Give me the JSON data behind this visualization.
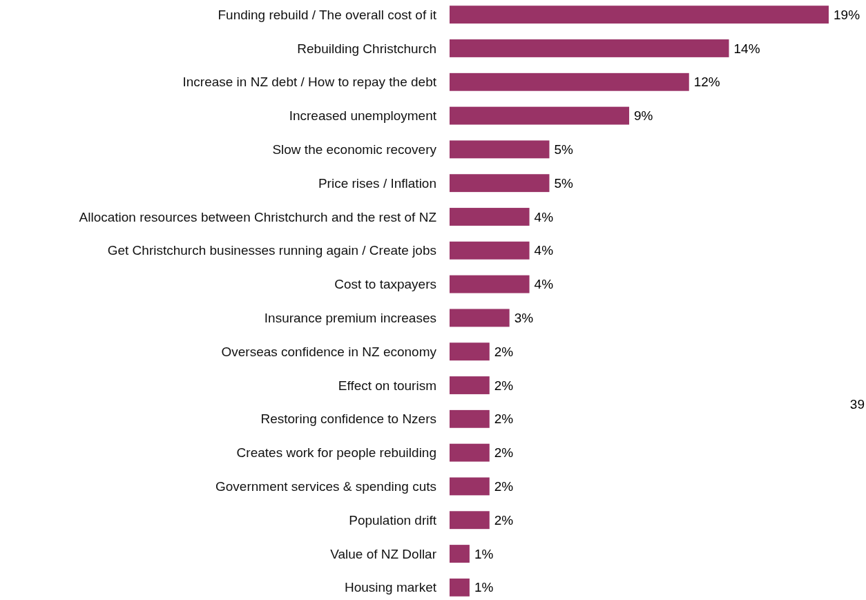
{
  "chart_data": {
    "type": "bar",
    "orientation": "horizontal",
    "color": "#993366",
    "value_labels": [
      "19%",
      "14%",
      "12%",
      "9%",
      "5%",
      "5%",
      "4%",
      "4%",
      "4%",
      "3%",
      "2%",
      "2%",
      "2%",
      "2%",
      "2%",
      "2%",
      "1%",
      "1%"
    ],
    "categories": [
      "Funding rebuild / The overall cost of it",
      "Rebuilding Christchurch",
      "Increase in NZ debt / How to repay the debt",
      "Increased unemployment",
      "Slow the economic recovery",
      "Price rises / Inflation",
      "Allocation resources between Christchurch and the rest of NZ",
      "Get Christchurch businesses running again / Create jobs",
      "Cost to taxpayers",
      "Insurance premium increases",
      "Overseas confidence in NZ economy",
      "Effect on tourism",
      "Restoring confidence to Nzers",
      "Creates work for people rebuilding",
      "Government services & spending cuts",
      "Population drift",
      "Value of NZ Dollar",
      "Housing market"
    ],
    "values": [
      19,
      14,
      12,
      9,
      5,
      5,
      4,
      4,
      4,
      3,
      2,
      2,
      2,
      2,
      2,
      2,
      1,
      1
    ],
    "annotations": [
      "39"
    ]
  }
}
